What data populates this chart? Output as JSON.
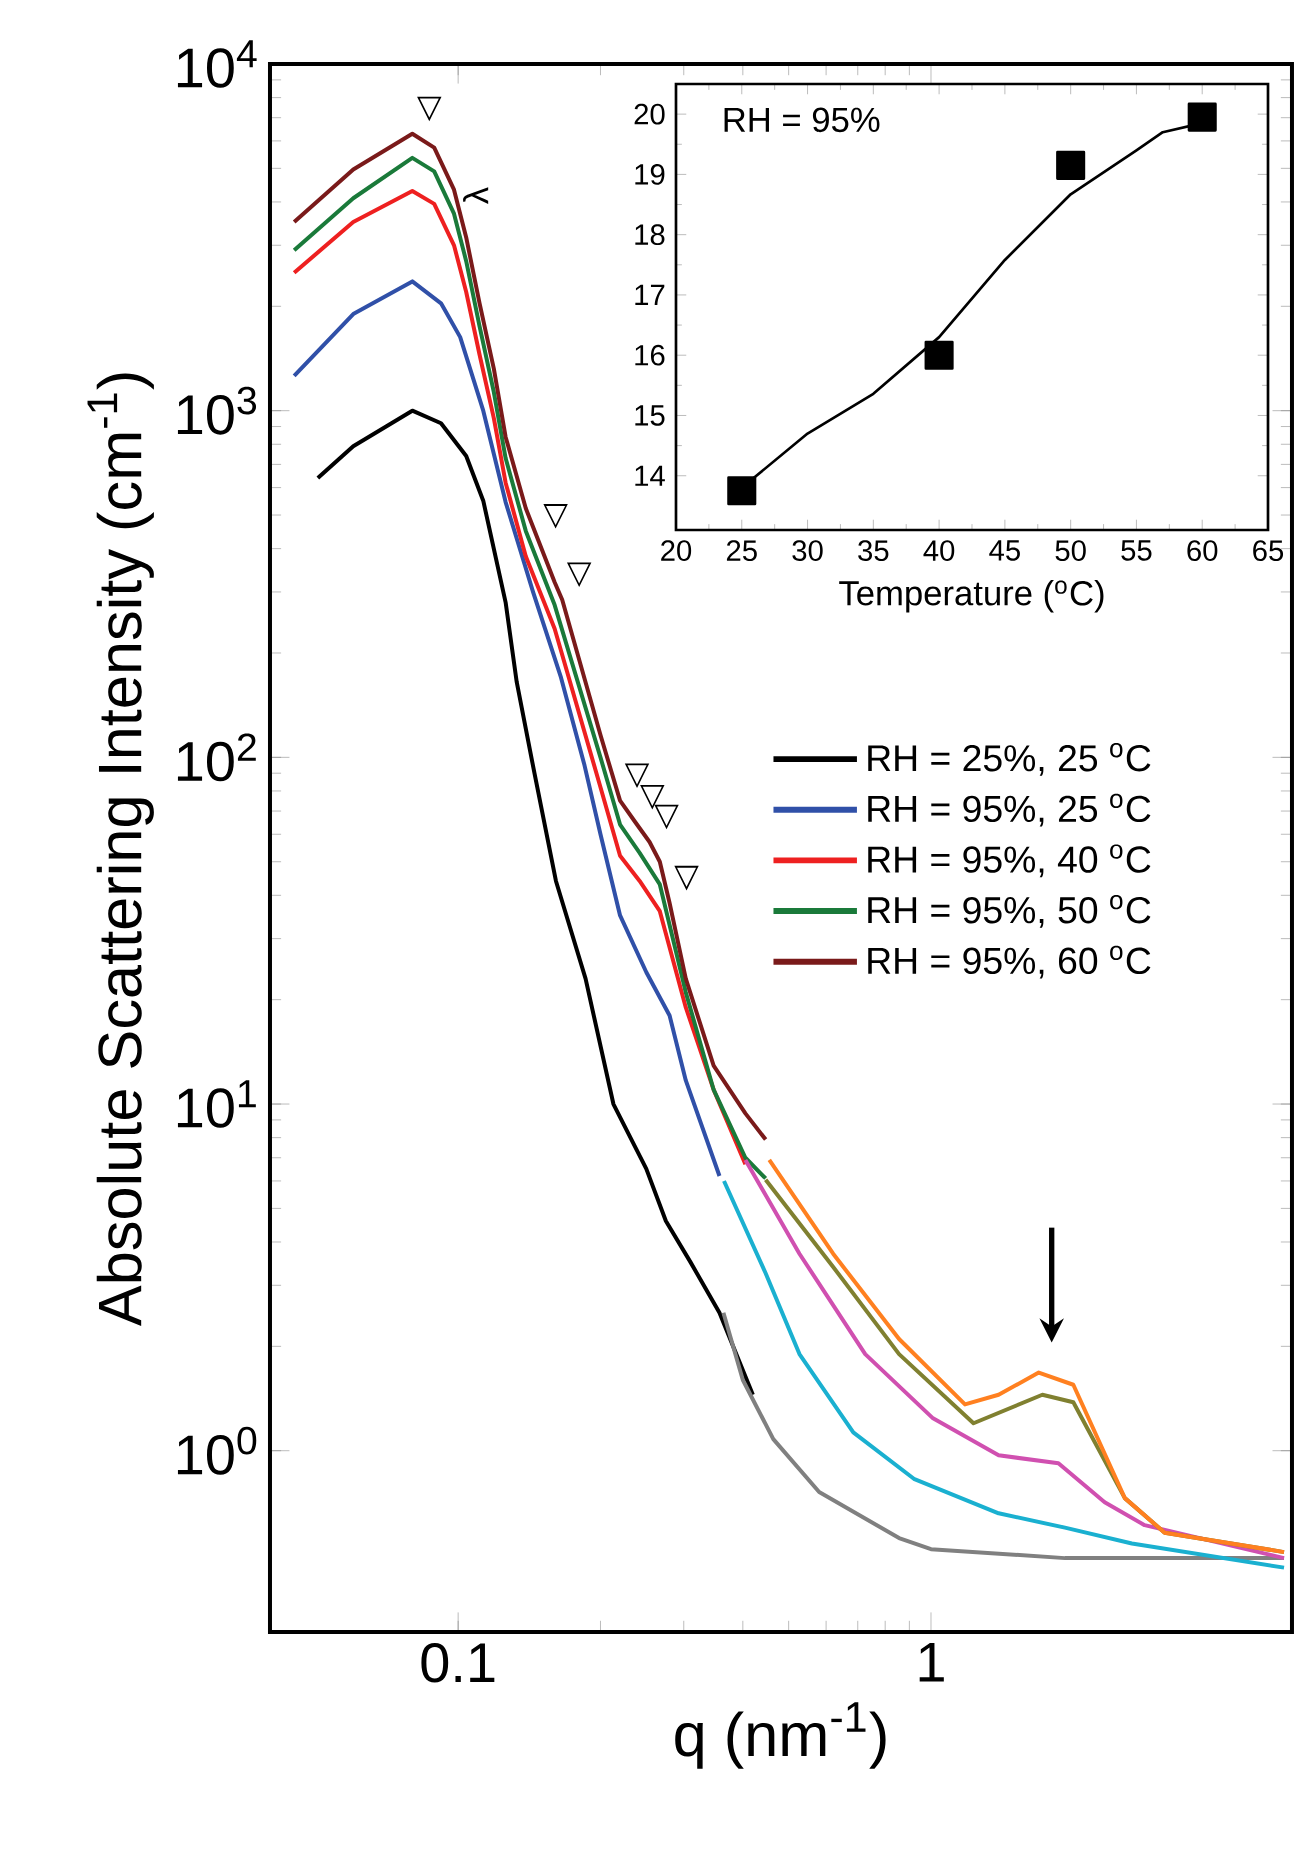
{
  "chart_data": [
    {
      "type": "line",
      "xlabel": "q (nm$^{-1}$)",
      "ylabel": "Absolute Scattering Intensity (cm$^{-1}$)",
      "log": "xy",
      "xlim": [
        0.04,
        5.8
      ],
      "ylim": [
        0.3,
        10000
      ],
      "xticks": [
        0.1,
        1
      ],
      "yticks": [
        {
          "value": 1,
          "label": "10$^{0}$"
        },
        {
          "value": 10,
          "label": "10$^{1}$"
        },
        {
          "value": 100,
          "label": "10$^{2}$"
        },
        {
          "value": 1000,
          "label": "10$^{3}$"
        },
        {
          "value": 10000,
          "label": "10$^{4}$"
        }
      ],
      "legend": "right",
      "line_style": "solid",
      "marker": "none",
      "series": [
        {
          "name": "RH = 25%, 25 $^{o}$C",
          "color": "#000000",
          "x": [
            0.0505,
            0.06,
            0.08,
            0.092,
            0.104,
            0.113,
            0.126,
            0.133,
            0.145,
            0.161,
            0.186,
            0.213,
            0.25,
            0.275,
            0.31,
            0.357,
            0.42
          ],
          "values": [
            640,
            790,
            1000,
            920,
            740,
            550,
            280,
            165,
            90,
            44,
            23,
            10,
            6.5,
            4.6,
            3.5,
            2.5,
            1.45
          ]
        },
        {
          "name": "RH = 95%, 25 $^{o}$C",
          "color": "#3050a8",
          "x": [
            0.045,
            0.06,
            0.08,
            0.092,
            0.101,
            0.113,
            0.126,
            0.144,
            0.165,
            0.185,
            0.2,
            0.22,
            0.25,
            0.28,
            0.303,
            0.357
          ],
          "values": [
            1260,
            1900,
            2360,
            2040,
            1630,
            1000,
            545,
            300,
            170,
            95,
            60,
            35,
            24,
            18,
            11.7,
            6.2
          ]
        },
        {
          "name": "RH = 95%, 40 $^{o}$C",
          "color": "#ee2020",
          "x": [
            0.045,
            0.06,
            0.08,
            0.089,
            0.098,
            0.104,
            0.111,
            0.119,
            0.126,
            0.139,
            0.16,
            0.2,
            0.22,
            0.242,
            0.267,
            0.303,
            0.347,
            0.405
          ],
          "values": [
            2500,
            3500,
            4300,
            3950,
            3000,
            2200,
            1450,
            950,
            620,
            380,
            235,
            82,
            52,
            44,
            36,
            19,
            11,
            6.7
          ]
        },
        {
          "name": "RH = 95%, 50 $^{o}$C",
          "color": "#1a7a3a",
          "x": [
            0.045,
            0.06,
            0.08,
            0.089,
            0.098,
            0.104,
            0.111,
            0.119,
            0.126,
            0.139,
            0.16,
            0.2,
            0.22,
            0.242,
            0.267,
            0.303,
            0.347,
            0.405,
            0.447
          ],
          "values": [
            2900,
            4100,
            5360,
            4900,
            3700,
            2700,
            1750,
            1130,
            730,
            450,
            275,
            100,
            64,
            53,
            43,
            21,
            11,
            7.0,
            6.1
          ]
        },
        {
          "name": "RH = 95%, 60 $^{o}$C",
          "color": "#7a1a1a",
          "x": [
            0.045,
            0.06,
            0.08,
            0.089,
            0.098,
            0.104,
            0.111,
            0.119,
            0.126,
            0.139,
            0.148,
            0.16,
            0.166,
            0.2,
            0.22,
            0.237,
            0.254,
            0.267,
            0.28,
            0.303,
            0.347,
            0.405,
            0.447
          ],
          "values": [
            3500,
            4960,
            6290,
            5740,
            4340,
            3160,
            2040,
            1320,
            840,
            523,
            420,
            320,
            285,
            116,
            75,
            65,
            57,
            50,
            38,
            23,
            12.9,
            9.4,
            7.9
          ]
        },
        {
          "color": "#808080",
          "x": [
            0.364,
            0.4,
            0.464,
            0.58,
            0.856,
            1.0,
            1.92,
            5.58
          ],
          "values": [
            2.5,
            1.6,
            1.08,
            0.76,
            0.56,
            0.52,
            0.49,
            0.49
          ]
        },
        {
          "color": "#1ab0d0",
          "x": [
            0.365,
            0.447,
            0.527,
            0.685,
            0.92,
            1.39,
            1.92,
            2.66,
            5.58
          ],
          "values": [
            6.0,
            3.25,
            1.9,
            1.13,
            0.83,
            0.66,
            0.6,
            0.54,
            0.46
          ]
        },
        {
          "color": "#d050b0",
          "x": [
            0.405,
            0.527,
            0.726,
            1.01,
            1.39,
            1.86,
            2.33,
            2.83,
            5.58
          ],
          "values": [
            6.9,
            3.7,
            1.9,
            1.24,
            0.97,
            0.92,
            0.71,
            0.61,
            0.49
          ]
        },
        {
          "color": "#808030",
          "x": [
            0.447,
            0.62,
            0.856,
            1.23,
            1.72,
            2.0,
            2.57,
            3.12,
            5.58
          ],
          "values": [
            6.05,
            3.4,
            1.9,
            1.2,
            1.45,
            1.38,
            0.73,
            0.58,
            0.51
          ]
        },
        {
          "color": "#ff8020",
          "x": [
            0.455,
            0.621,
            0.856,
            1.18,
            1.39,
            1.69,
            2.0,
            2.57,
            3.12,
            5.58
          ],
          "values": [
            6.9,
            3.7,
            2.1,
            1.36,
            1.45,
            1.68,
            1.55,
            0.73,
            0.58,
            0.51
          ]
        }
      ],
      "annotations": [
        {
          "text": "▽",
          "x": 0.08,
          "y": 6290
        },
        {
          "text": "▽",
          "x": 0.148,
          "y": 420
        },
        {
          "text": "▽",
          "x": 0.166,
          "y": 285
        },
        {
          "text": "▽",
          "x": 0.22,
          "y": 75
        },
        {
          "text": "▽",
          "x": 0.237,
          "y": 65
        },
        {
          "text": "▽",
          "x": 0.254,
          "y": 57
        },
        {
          "text": "▽",
          "x": 0.28,
          "y": 38
        }
      ]
    },
    {
      "type": "scatter",
      "xlabel": "Temperature ($^{o}$C)",
      "ylabel": "λ",
      "xlim": [
        20,
        65
      ],
      "ylim": [
        13.1,
        20.5
      ],
      "xticks": [
        20,
        25,
        30,
        35,
        40,
        45,
        50,
        55,
        60,
        65
      ],
      "yticks": [
        14,
        15,
        16,
        17,
        18,
        19,
        20
      ],
      "series": [
        {
          "type": "scatter",
          "marker": "square",
          "color": "#000000",
          "x": [
            25,
            40,
            50,
            60
          ],
          "values": [
            13.75,
            16.0,
            19.15,
            19.95
          ]
        },
        {
          "type": "line",
          "marker": "none",
          "color": "#000000",
          "x": [
            25,
            30,
            35,
            40,
            45,
            50,
            55,
            57,
            60
          ],
          "values": [
            13.8,
            14.7,
            15.36,
            16.3,
            17.58,
            18.67,
            19.4,
            19.7,
            19.85
          ]
        }
      ],
      "annotations": [
        "RH = 95%"
      ]
    }
  ]
}
